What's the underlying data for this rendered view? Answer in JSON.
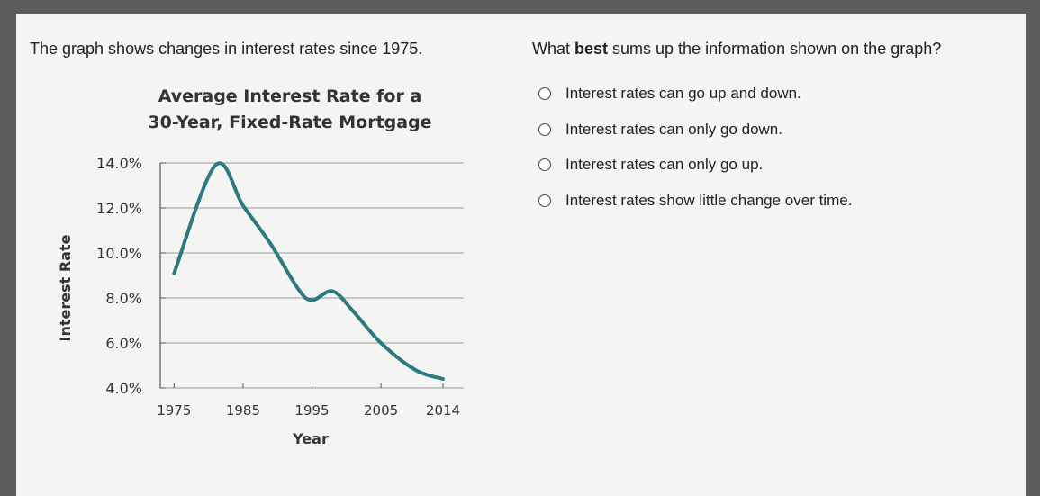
{
  "prompt": "The graph shows changes in interest rates since 1975.",
  "question": [
    "What ",
    "best",
    " sums up the information shown on the graph?"
  ],
  "options": [
    "Interest rates can go up and down.",
    "Interest rates can only go down.",
    "Interest rates can only go up.",
    "Interest rates show little change over time."
  ],
  "chart_data": {
    "type": "line",
    "title": [
      "Average Interest Rate for a",
      "30-Year, Fixed-Rate Mortgage"
    ],
    "x_label": "Year",
    "y_label": "Interest Rate",
    "x": [
      1975,
      1981,
      1985,
      1989,
      1993,
      1995,
      1998,
      2001,
      2005,
      2010,
      2014
    ],
    "values": [
      9.1,
      13.9,
      12.1,
      10.4,
      8.4,
      7.9,
      8.3,
      7.4,
      6.0,
      4.8,
      4.4
    ],
    "color": "#2b7a80",
    "xlim": [
      1973,
      2017
    ],
    "xticks": [
      1975,
      1985,
      1995,
      2005,
      2014
    ],
    "ylim": [
      4,
      14
    ],
    "yticks": [
      {
        "value": 4,
        "label": "4.0%"
      },
      {
        "value": 6,
        "label": "6.0%"
      },
      {
        "value": 8,
        "label": "8.0%"
      },
      {
        "value": 10,
        "label": "10.0%"
      },
      {
        "value": 12,
        "label": "12.0%"
      },
      {
        "value": 14,
        "label": "14.0%"
      }
    ],
    "grid": true
  }
}
